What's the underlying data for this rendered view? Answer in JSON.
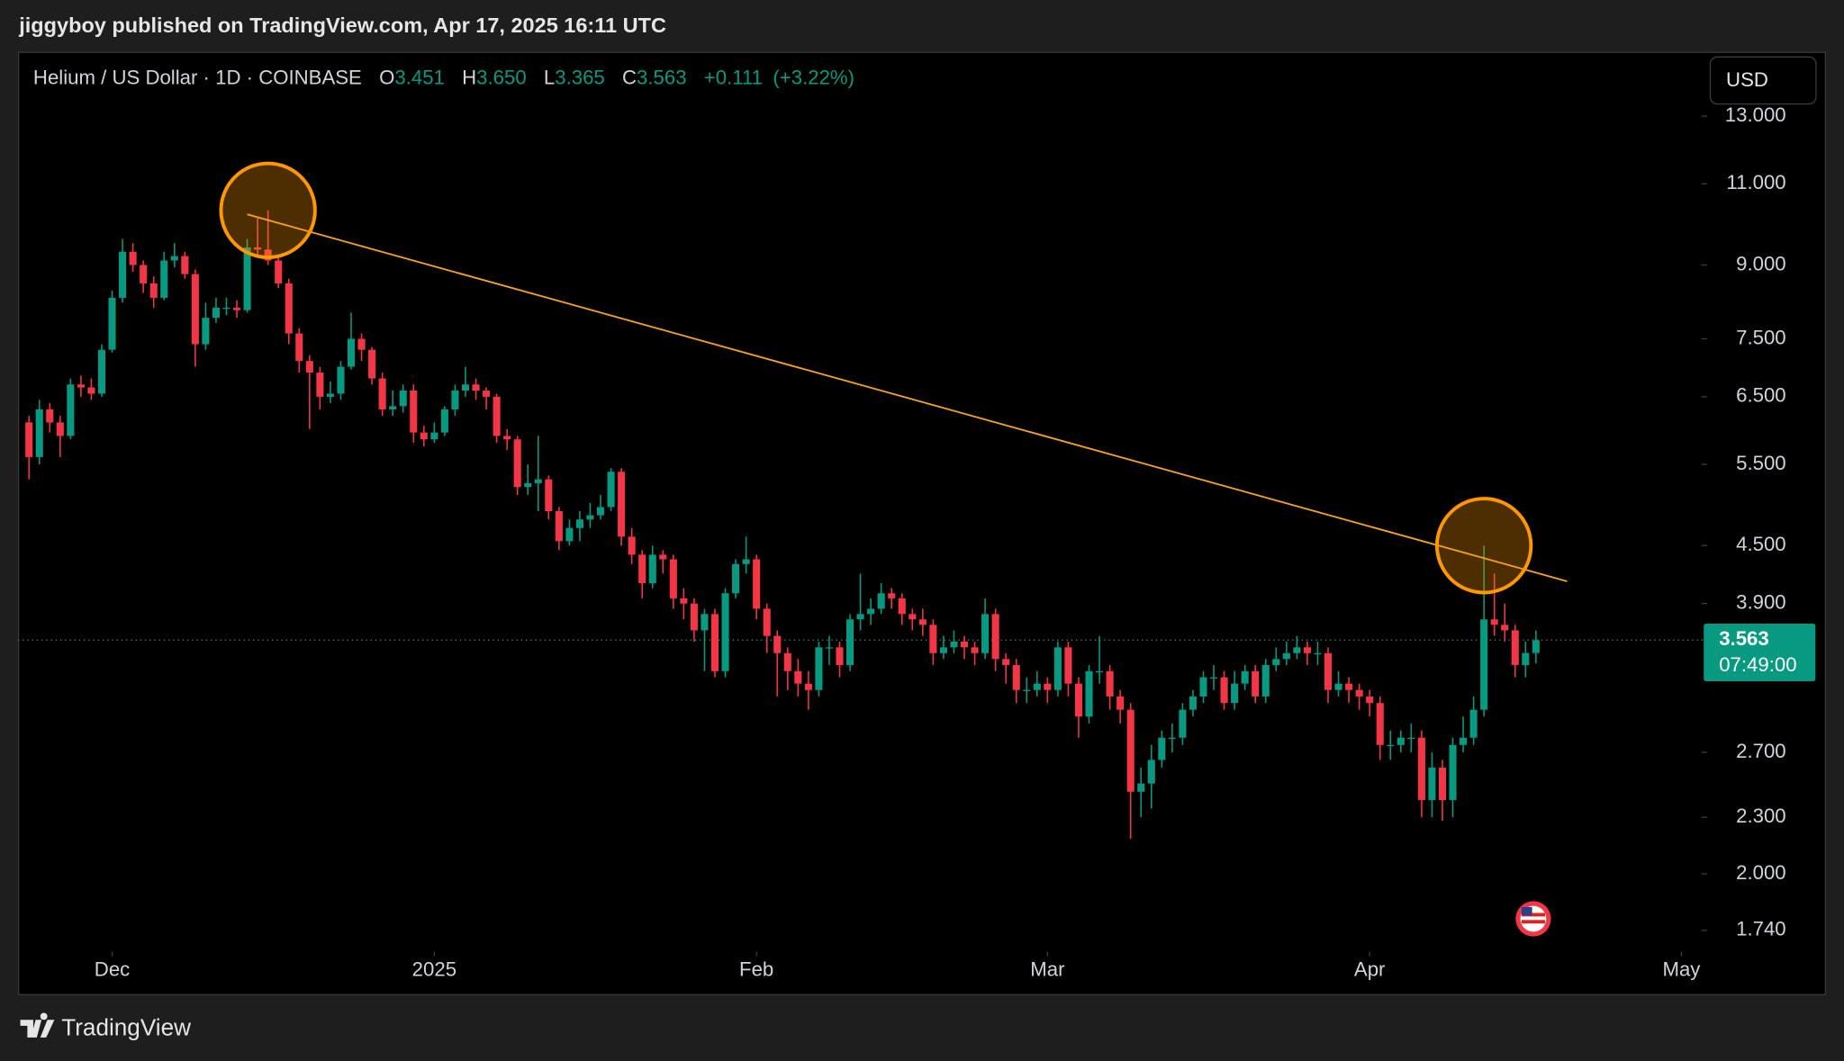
{
  "header": {
    "published": "jiggyboy published on TradingView.com, Apr 17, 2025 16:11 UTC",
    "symbol": "Helium / US Dollar · 1D · COINBASE",
    "open_label": "O",
    "open": "3.451",
    "high_label": "H",
    "high": "3.650",
    "low_label": "L",
    "low": "3.365",
    "close_label": "C",
    "close": "3.563",
    "change": "+0.111",
    "change_percent": "(+3.22%)"
  },
  "currency": "USD",
  "last_price": {
    "label": "3.563",
    "countdown": "07:49:00"
  },
  "footer": {
    "brand": "TradingView"
  },
  "chart_data": {
    "type": "candlestick",
    "up_color": "#089981",
    "down_color": "#f23645",
    "log_scale": true,
    "grid": false,
    "xlim": [
      -1.06,
      172.8
    ],
    "xticks": [
      {
        "value": 8,
        "label": "Dec"
      },
      {
        "value": 39,
        "label": "2025"
      },
      {
        "value": 70,
        "label": "Feb"
      },
      {
        "value": 98,
        "label": "Mar"
      },
      {
        "value": 129,
        "label": "Apr"
      },
      {
        "value": 159,
        "label": "May"
      }
    ],
    "ylim": [
      1.65,
      15.2
    ],
    "yticks": [
      {
        "value": 13,
        "label": "13.000"
      },
      {
        "value": 11,
        "label": "11.000"
      },
      {
        "value": 9,
        "label": "9.000"
      },
      {
        "value": 7.5,
        "label": "7.500"
      },
      {
        "value": 6.5,
        "label": "6.500"
      },
      {
        "value": 5.5,
        "label": "5.500"
      },
      {
        "value": 4.5,
        "label": "4.500"
      },
      {
        "value": 3.9,
        "label": "3.900"
      },
      {
        "value": 2.7,
        "label": "2.700"
      },
      {
        "value": 2.3,
        "label": "2.300"
      },
      {
        "value": 2,
        "label": "2.000"
      },
      {
        "value": 1.74,
        "label": "1.740"
      }
    ],
    "open": [
      6.1,
      5.6,
      6.3,
      6.1,
      5.9,
      6.7,
      6.65,
      6.55,
      7.3,
      8.3,
      9.3,
      9.0,
      8.6,
      8.3,
      9.1,
      9.2,
      8.8,
      7.4,
      7.9,
      8.1,
      8.1,
      8.05,
      9.4,
      9.35,
      9.1,
      8.6,
      7.6,
      7.1,
      6.9,
      6.5,
      6.55,
      7.0,
      7.5,
      7.3,
      6.8,
      6.3,
      6.35,
      6.6,
      5.95,
      5.85,
      5.95,
      6.3,
      6.6,
      6.7,
      6.6,
      6.5,
      5.9,
      5.85,
      5.2,
      5.25,
      5.3,
      4.9,
      4.55,
      4.7,
      4.8,
      4.85,
      4.95,
      5.4,
      4.6,
      4.4,
      4.1,
      4.4,
      4.35,
      3.95,
      3.9,
      3.65,
      3.8,
      3.3,
      4.0,
      4.3,
      4.35,
      3.85,
      3.6,
      3.45,
      3.3,
      3.2,
      3.15,
      3.5,
      3.5,
      3.35,
      3.75,
      3.8,
      3.85,
      4.0,
      3.95,
      3.8,
      3.75,
      3.7,
      3.45,
      3.5,
      3.55,
      3.5,
      3.45,
      3.8,
      3.4,
      3.35,
      3.15,
      3.15,
      3.2,
      3.15,
      3.5,
      3.2,
      2.95,
      3.3,
      3.3,
      3.1,
      3.0,
      2.45,
      2.5,
      2.65,
      2.8,
      2.8,
      3.0,
      3.1,
      3.25,
      3.25,
      3.05,
      3.2,
      3.3,
      3.1,
      3.35,
      3.4,
      3.45,
      3.5,
      3.45,
      3.45,
      3.15,
      3.2,
      3.15,
      3.1,
      3.05,
      2.75,
      2.75,
      2.8,
      2.8,
      2.4,
      2.6,
      2.4,
      2.75,
      2.8,
      3.0,
      3.75,
      3.7,
      3.65,
      3.35,
      3.451
    ],
    "high": [
      6.2,
      6.45,
      6.4,
      6.2,
      6.8,
      6.85,
      6.8,
      7.4,
      8.45,
      9.6,
      9.5,
      9.1,
      8.75,
      9.3,
      9.5,
      9.3,
      8.9,
      8.2,
      8.3,
      8.3,
      8.25,
      9.6,
      10.1,
      10.3,
      9.2,
      8.7,
      7.7,
      7.2,
      7.0,
      6.75,
      7.1,
      8.0,
      7.6,
      7.35,
      6.9,
      6.6,
      6.7,
      6.7,
      6.05,
      6.1,
      6.35,
      6.7,
      7.0,
      6.8,
      6.65,
      6.55,
      6.0,
      5.9,
      5.5,
      5.9,
      5.35,
      4.95,
      4.8,
      4.9,
      5.0,
      5.1,
      5.45,
      5.45,
      4.7,
      4.45,
      4.5,
      4.45,
      4.4,
      4.05,
      3.95,
      3.85,
      3.85,
      4.05,
      4.35,
      4.6,
      4.4,
      3.9,
      3.65,
      3.5,
      3.4,
      3.3,
      3.55,
      3.6,
      3.55,
      3.8,
      4.2,
      3.95,
      4.1,
      4.05,
      4.0,
      3.85,
      3.85,
      3.75,
      3.6,
      3.65,
      3.6,
      3.55,
      3.95,
      3.85,
      3.45,
      3.4,
      3.25,
      3.3,
      3.25,
      3.55,
      3.55,
      3.25,
      3.35,
      3.6,
      3.35,
      3.15,
      3.05,
      2.6,
      2.75,
      2.85,
      2.9,
      3.05,
      3.15,
      3.3,
      3.35,
      3.3,
      3.3,
      3.35,
      3.35,
      3.4,
      3.5,
      3.55,
      3.6,
      3.55,
      3.55,
      3.5,
      3.3,
      3.25,
      3.2,
      3.15,
      3.1,
      2.85,
      2.85,
      2.9,
      2.85,
      2.7,
      2.65,
      2.8,
      2.95,
      3.1,
      4.5,
      4.2,
      3.9,
      3.7,
      3.55,
      3.65
    ],
    "low": [
      5.3,
      5.5,
      5.95,
      5.6,
      5.85,
      6.5,
      6.45,
      6.5,
      7.25,
      8.2,
      8.85,
      8.4,
      8.1,
      8.25,
      8.95,
      8.7,
      7.0,
      7.3,
      7.8,
      7.95,
      7.9,
      8.0,
      9.2,
      9.0,
      8.5,
      7.4,
      6.9,
      6.0,
      6.3,
      6.4,
      6.45,
      6.95,
      7.1,
      6.7,
      6.2,
      6.2,
      6.25,
      5.8,
      5.75,
      5.8,
      5.9,
      6.2,
      6.5,
      6.45,
      6.3,
      5.8,
      5.7,
      5.1,
      5.1,
      4.9,
      4.8,
      4.45,
      4.5,
      4.55,
      4.7,
      4.8,
      4.9,
      4.5,
      4.3,
      3.95,
      4.05,
      4.2,
      3.85,
      3.75,
      3.55,
      3.3,
      3.25,
      3.25,
      3.95,
      4.2,
      3.75,
      3.45,
      3.1,
      3.15,
      3.1,
      3.0,
      3.1,
      3.35,
      3.25,
      3.3,
      3.65,
      3.7,
      3.8,
      3.85,
      3.7,
      3.65,
      3.6,
      3.35,
      3.4,
      3.45,
      3.4,
      3.35,
      3.4,
      3.3,
      3.2,
      3.05,
      3.05,
      3.1,
      3.05,
      3.1,
      3.1,
      2.8,
      2.9,
      3.2,
      3.0,
      2.9,
      2.18,
      2.3,
      2.35,
      2.6,
      2.7,
      2.75,
      2.95,
      3.05,
      3.15,
      3.0,
      3.0,
      3.15,
      3.05,
      3.05,
      3.3,
      3.35,
      3.4,
      3.35,
      3.35,
      3.05,
      3.1,
      3.05,
      3.0,
      2.95,
      2.65,
      2.65,
      2.7,
      2.7,
      2.3,
      2.3,
      2.28,
      2.3,
      2.7,
      2.75,
      2.95,
      3.6,
      3.55,
      3.25,
      3.25,
      3.365
    ],
    "close": [
      5.6,
      6.3,
      6.1,
      5.9,
      6.7,
      6.65,
      6.55,
      7.3,
      8.3,
      9.3,
      9.0,
      8.6,
      8.3,
      9.1,
      9.2,
      8.8,
      7.4,
      7.9,
      8.1,
      8.1,
      8.05,
      9.4,
      9.35,
      9.1,
      8.6,
      7.6,
      7.1,
      6.9,
      6.5,
      6.55,
      7.0,
      7.5,
      7.3,
      6.8,
      6.3,
      6.35,
      6.6,
      5.95,
      5.85,
      5.95,
      6.3,
      6.6,
      6.7,
      6.6,
      6.5,
      5.9,
      5.85,
      5.2,
      5.25,
      5.3,
      4.9,
      4.55,
      4.7,
      4.8,
      4.85,
      4.95,
      5.4,
      4.6,
      4.4,
      4.1,
      4.4,
      4.35,
      3.95,
      3.9,
      3.65,
      3.8,
      3.3,
      4.0,
      4.3,
      4.35,
      3.85,
      3.6,
      3.45,
      3.3,
      3.2,
      3.15,
      3.5,
      3.5,
      3.35,
      3.75,
      3.8,
      3.85,
      4.0,
      3.95,
      3.8,
      3.75,
      3.7,
      3.45,
      3.5,
      3.55,
      3.5,
      3.45,
      3.8,
      3.4,
      3.35,
      3.15,
      3.15,
      3.2,
      3.15,
      3.5,
      3.2,
      2.95,
      3.3,
      3.3,
      3.1,
      3.0,
      2.45,
      2.5,
      2.65,
      2.8,
      2.8,
      3.0,
      3.1,
      3.25,
      3.25,
      3.05,
      3.2,
      3.3,
      3.1,
      3.35,
      3.4,
      3.45,
      3.5,
      3.45,
      3.45,
      3.15,
      3.2,
      3.15,
      3.1,
      3.05,
      2.75,
      2.75,
      2.8,
      2.8,
      2.4,
      2.6,
      2.4,
      2.75,
      2.8,
      3.0,
      3.75,
      3.7,
      3.65,
      3.35,
      3.451,
      3.563
    ],
    "trendline": {
      "x": [
        21,
        148
      ],
      "y": [
        10.2,
        4.12
      ],
      "color": "#f7a21b"
    },
    "highlights": [
      23,
      140
    ],
    "highlight_color": "#ff9800"
  }
}
